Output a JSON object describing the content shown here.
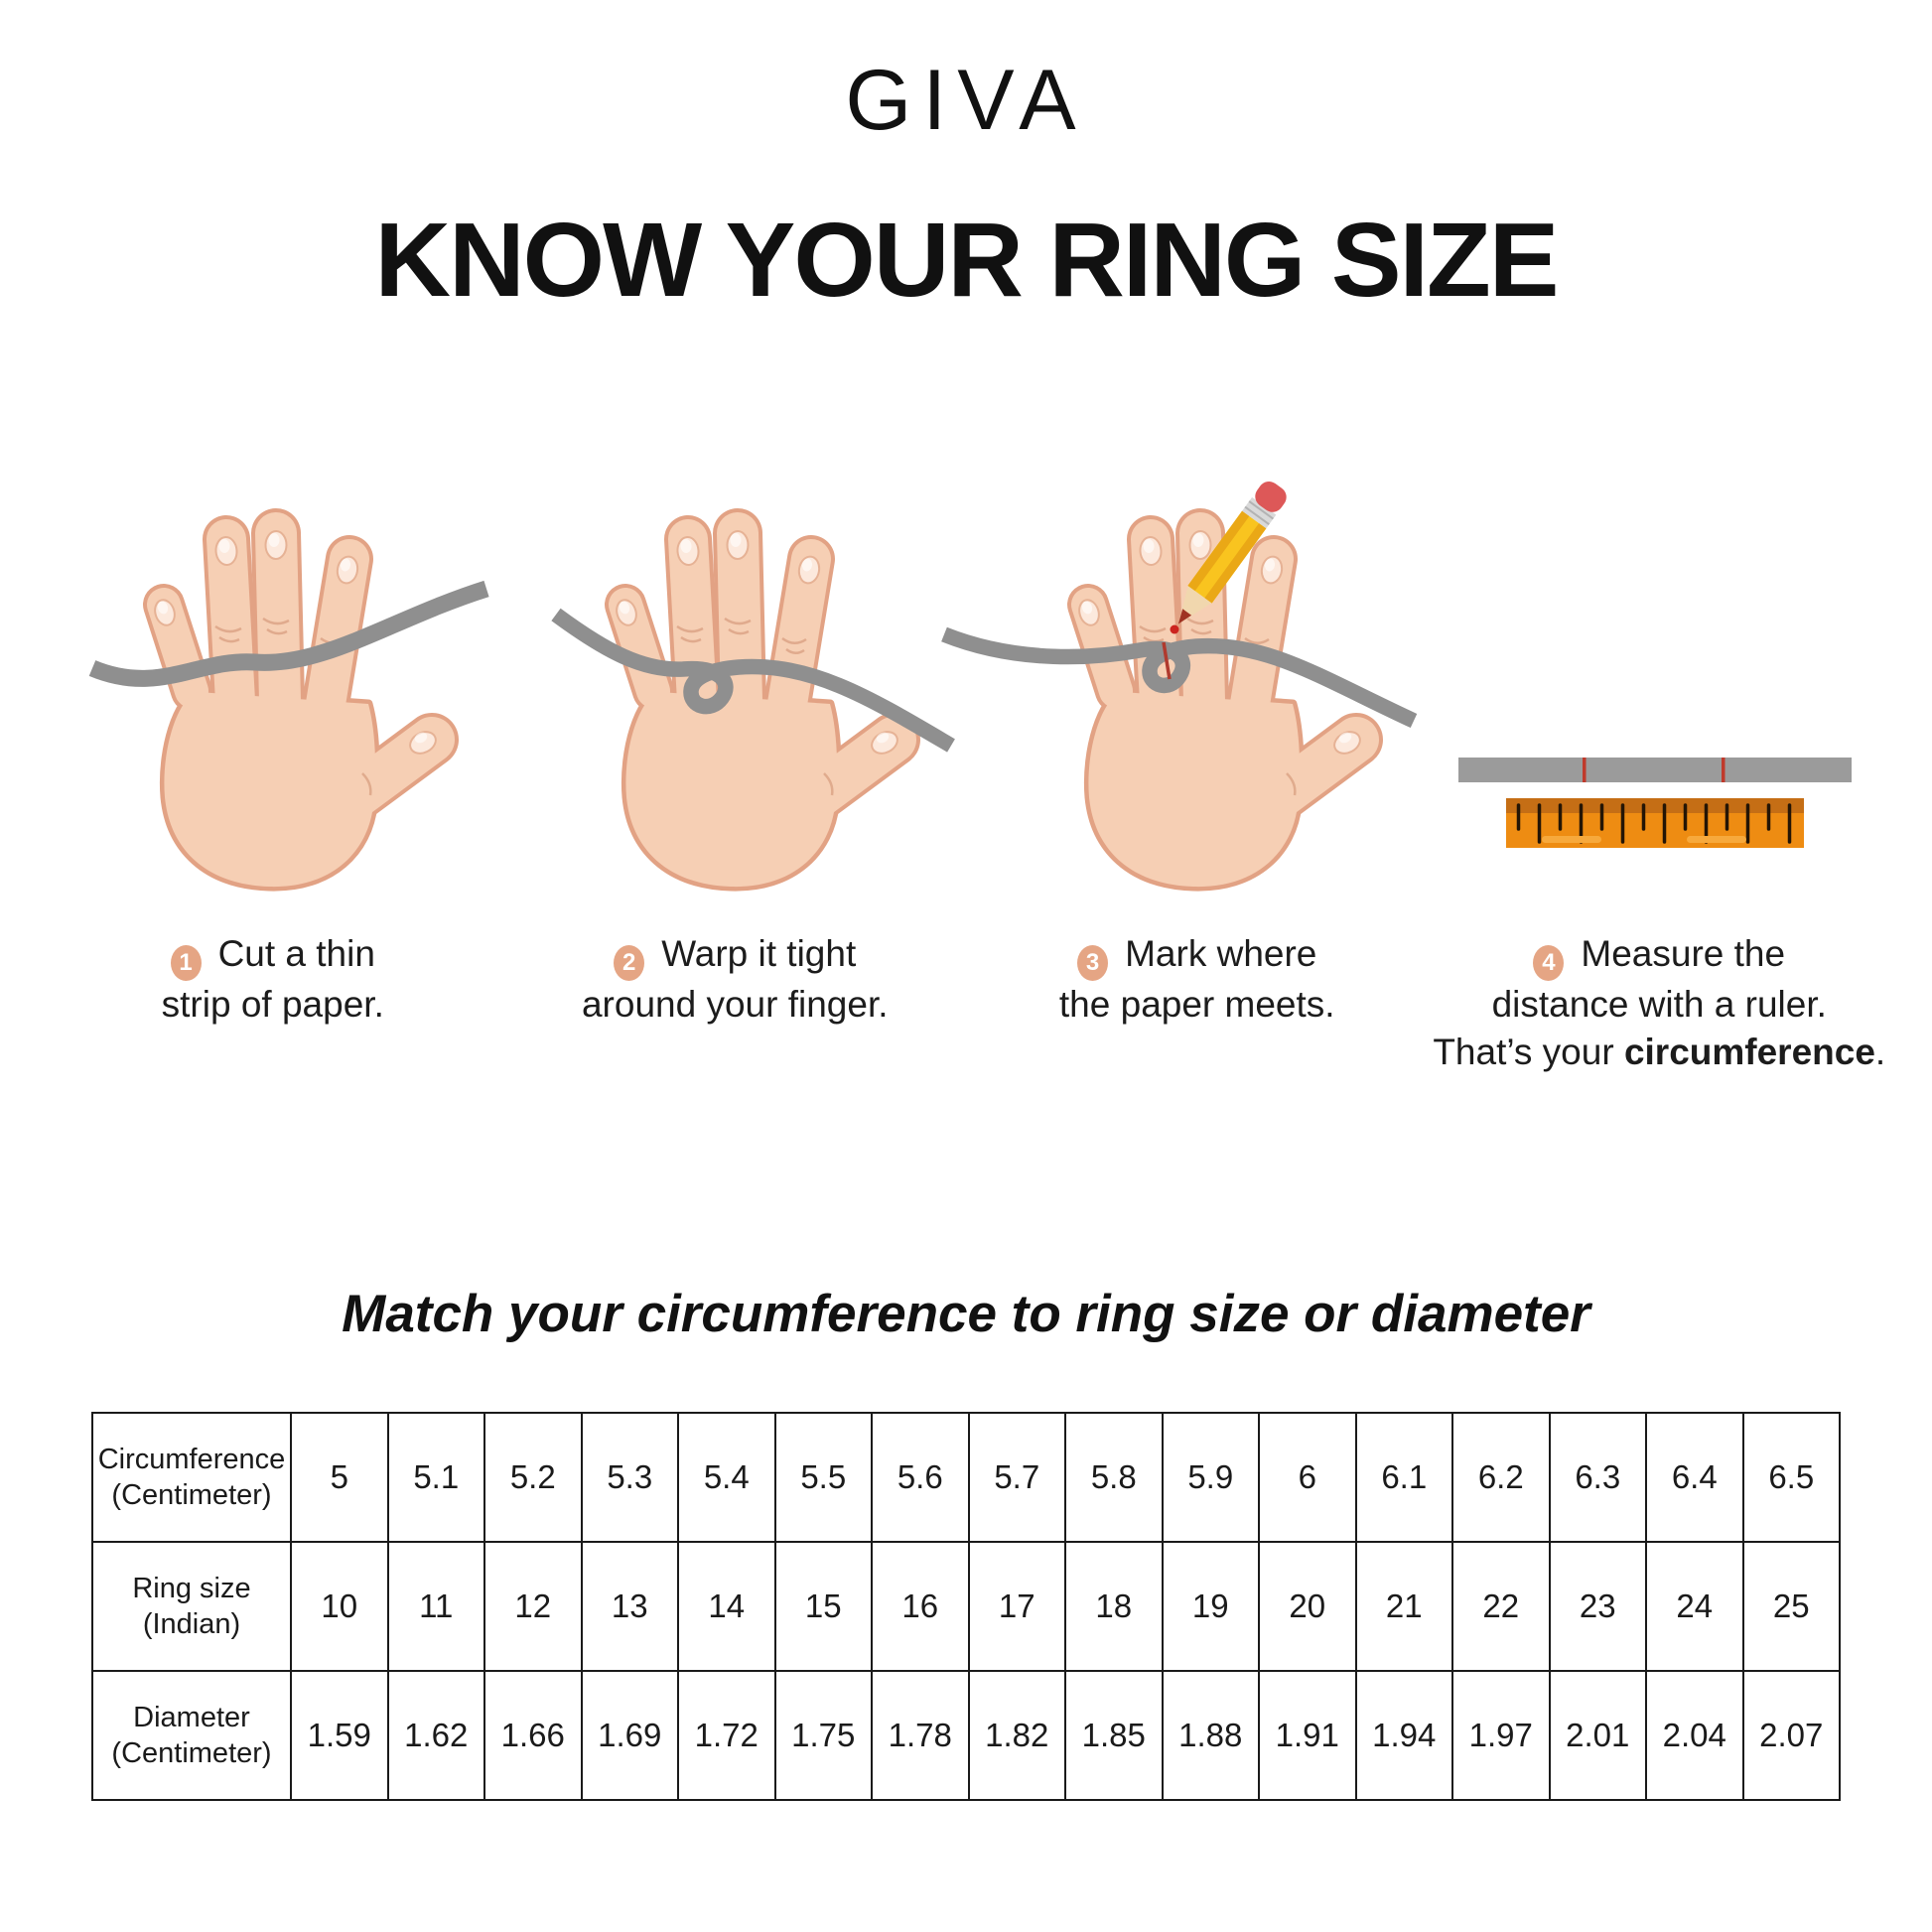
{
  "brand": {
    "logo": "GIVA"
  },
  "title": "KNOW YOUR RING SIZE",
  "steps": [
    {
      "number": "1",
      "line1": "Cut a thin",
      "line2": "strip of paper."
    },
    {
      "number": "2",
      "line1": "Warp it tight",
      "line2": "around your finger."
    },
    {
      "number": "3",
      "line1": "Mark where",
      "line2": "the paper meets."
    },
    {
      "number": "4",
      "line1": "Measure the",
      "line2": "distance with a ruler.",
      "line3_prefix": "That’s your ",
      "line3_bold": "circumference",
      "line3_suffix": "."
    }
  ],
  "subtitle": "Match your circumference to ring size or diameter",
  "table": {
    "rows": [
      {
        "header": "Circumference\n(Centimeter)",
        "values": [
          "5",
          "5.1",
          "5.2",
          "5.3",
          "5.4",
          "5.5",
          "5.6",
          "5.7",
          "5.8",
          "5.9",
          "6",
          "6.1",
          "6.2",
          "6.3",
          "6.4",
          "6.5"
        ]
      },
      {
        "header": "Ring size\n(Indian)",
        "values": [
          "10",
          "11",
          "12",
          "13",
          "14",
          "15",
          "16",
          "17",
          "18",
          "19",
          "20",
          "21",
          "22",
          "23",
          "24",
          "25"
        ]
      },
      {
        "header": "Diameter\n(Centimeter)",
        "values": [
          "1.59",
          "1.62",
          "1.66",
          "1.69",
          "1.72",
          "1.75",
          "1.78",
          "1.82",
          "1.85",
          "1.88",
          "1.91",
          "1.94",
          "1.97",
          "2.01",
          "2.04",
          "2.07"
        ]
      }
    ]
  },
  "colors": {
    "text": "#1a1a1a",
    "badge": "#e5a584",
    "skin": "#f6cfb4",
    "skin_outline": "#e2a284",
    "nail": "#fce9dd",
    "paper_strip": "#8f8f8f",
    "ruler_orange": "#ee8c12",
    "ruler_band": "#c56e15",
    "pencil_yellow": "#f9c41f",
    "eraser_red": "#dd5858",
    "mark_red": "#c0392b"
  }
}
